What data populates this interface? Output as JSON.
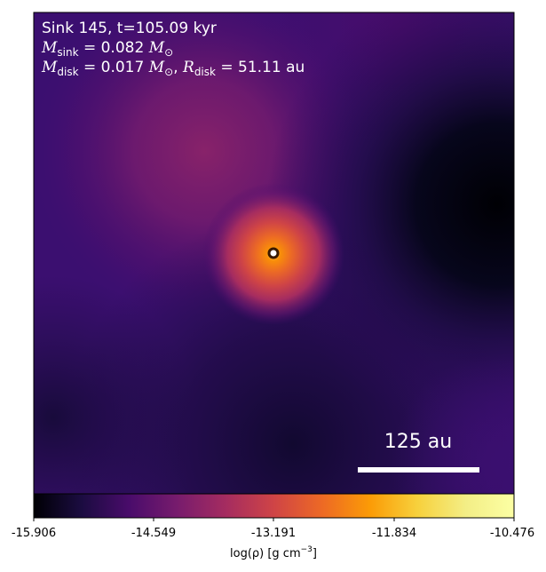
{
  "annotation": {
    "line1": "Sink 145, t=105.09 kyr",
    "m_sink_label": "M",
    "m_sink_sub": "sink",
    "m_sink_value": " = 0.082 ",
    "m_sink_unit": "M",
    "m_sink_unit_sub": "⊙",
    "m_disk_label": "M",
    "m_disk_sub": "disk",
    "m_disk_value": " = 0.017 ",
    "m_disk_unit": "M",
    "m_disk_unit_sub": "⊙",
    "m_disk_sep": ", ",
    "r_disk_label": "R",
    "r_disk_sub": "disk",
    "r_disk_value": " = 51.11 au"
  },
  "scale_bar": {
    "label": "125 au"
  },
  "colorbar": {
    "colormap": "inferno",
    "ticks": [
      "-15.906",
      "-14.549",
      "-13.191",
      "-11.834",
      "-10.476"
    ],
    "label_main": "log(ρ) [g cm",
    "label_sup": "−3",
    "label_end": "]"
  },
  "colors": {
    "text": "#ffffff",
    "sink_marker_fill": "#ffffff",
    "sink_marker_edge": "#3a1a00"
  }
}
